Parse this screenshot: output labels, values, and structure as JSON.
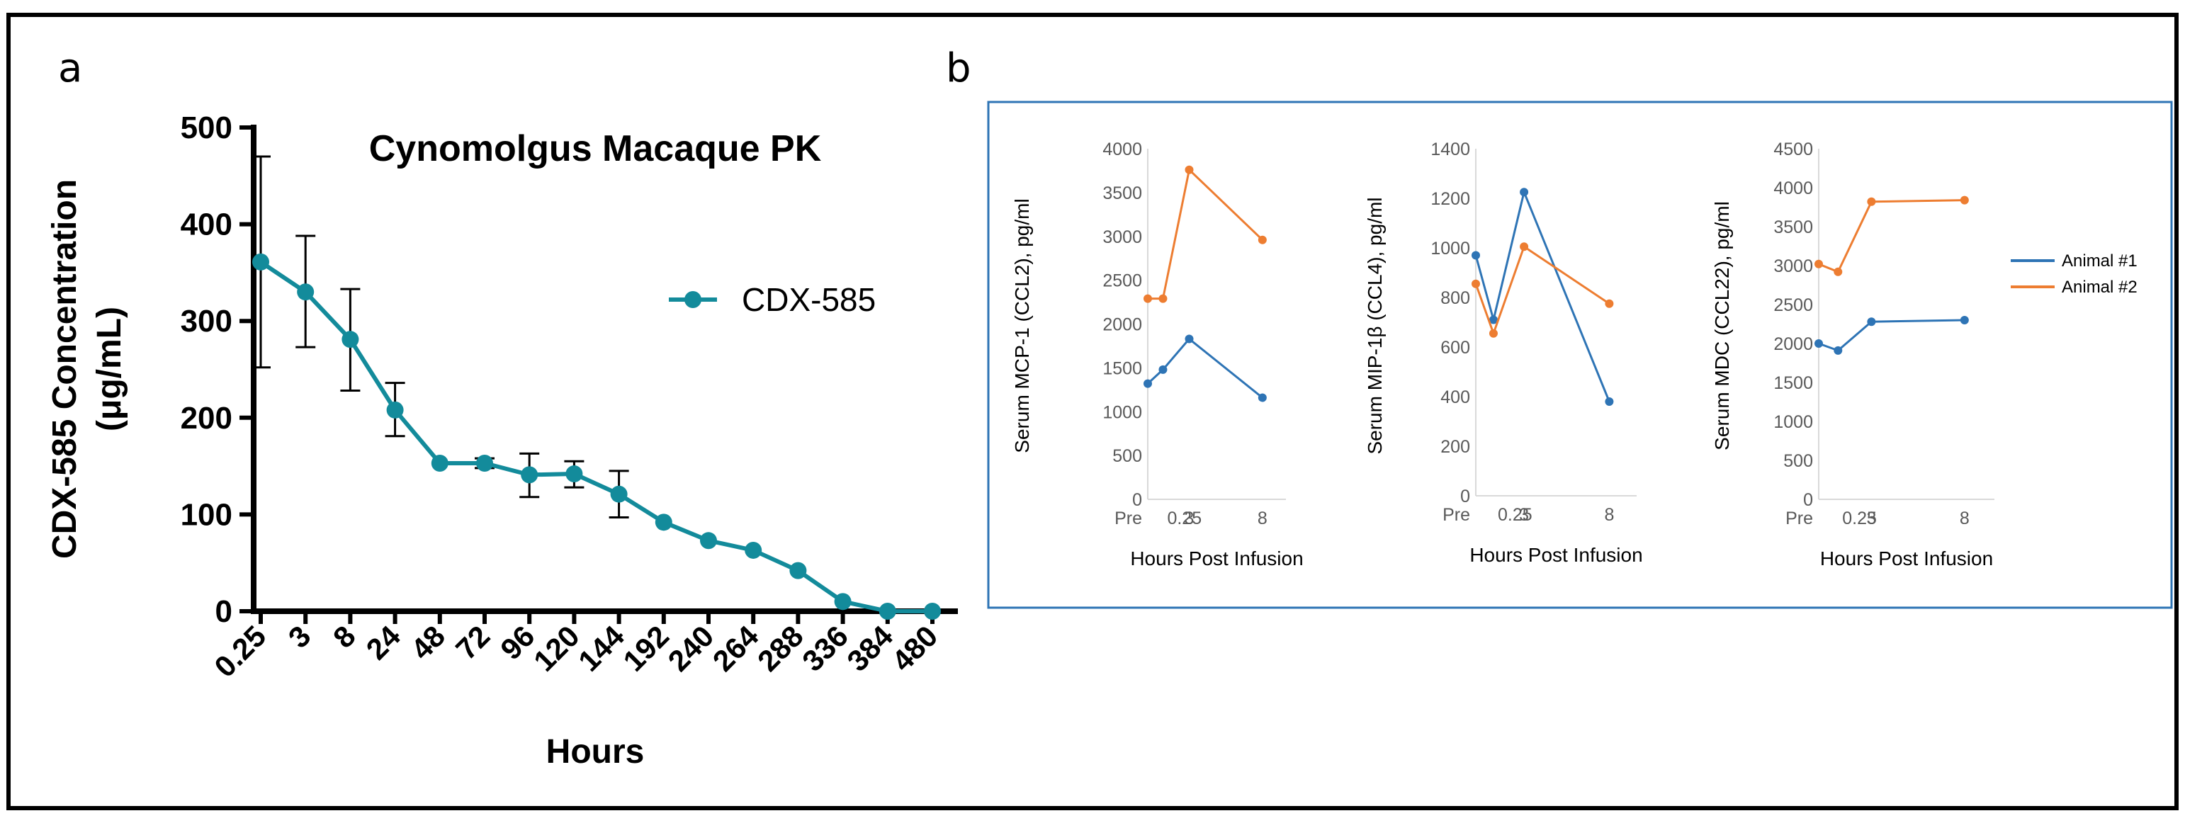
{
  "panels": {
    "a_letter": "a",
    "b_letter": "b"
  },
  "colors": {
    "teal": "#138b9b",
    "animal1": "#2e74b5",
    "animal2": "#ed7d31",
    "axis_b": "#d9d9d9"
  },
  "chart_data": [
    {
      "type": "line",
      "title": "Cynomolgus Macaque PK",
      "xlabel": "Hours",
      "ylabel": [
        "CDX-585 Concentration",
        "(μg/mL)"
      ],
      "categories": [
        "0.25",
        "3",
        "8",
        "24",
        "48",
        "72",
        "96",
        "120",
        "144",
        "192",
        "240",
        "264",
        "288",
        "336",
        "384",
        "480"
      ],
      "series": [
        {
          "name": "CDX-585",
          "values": [
            361,
            330,
            281,
            208,
            153,
            153,
            141,
            142,
            121,
            92,
            73,
            63,
            42,
            10,
            0,
            0
          ],
          "error_low": [
            252,
            273,
            228,
            181,
            null,
            148,
            118,
            128,
            97,
            null,
            null,
            null,
            null,
            null,
            null,
            null
          ],
          "error_high": [
            470,
            388,
            333,
            236,
            null,
            158,
            163,
            155,
            145,
            null,
            null,
            null,
            null,
            null,
            null,
            null
          ]
        }
      ],
      "ylim": [
        0,
        500
      ],
      "yticks": [
        0,
        100,
        200,
        300,
        400,
        500
      ],
      "legend": "right"
    },
    {
      "type": "line",
      "xlabel": "Hours Post Infusion",
      "ylabel": "Serum MCP-1 (CCL2), pg/ml",
      "x_ticks": [
        "Pre",
        "0.25",
        "3",
        "8"
      ],
      "ylim": [
        0,
        4000
      ],
      "yticks": [
        0,
        500,
        1000,
        1500,
        2000,
        2500,
        3000,
        3500,
        4000
      ],
      "series": [
        {
          "name": "Animal #1",
          "x": [
            0,
            0.25,
            3,
            8
          ],
          "values": [
            1320,
            1480,
            1830,
            1160
          ]
        },
        {
          "name": "Animal #2",
          "x": [
            0,
            0.25,
            3,
            8
          ],
          "values": [
            2290,
            2290,
            3760,
            2960
          ]
        }
      ]
    },
    {
      "type": "line",
      "xlabel": "Hours Post Infusion",
      "ylabel": "Serum MIP-1β (CCL4), pg/ml",
      "x_ticks": [
        "Pre",
        "0.25",
        "3",
        "8"
      ],
      "ylim": [
        0,
        1400
      ],
      "yticks": [
        0,
        200,
        400,
        600,
        800,
        1000,
        1200,
        1400
      ],
      "series": [
        {
          "name": "Animal #1",
          "x": [
            0,
            0.25,
            3,
            8
          ],
          "values": [
            970,
            710,
            1225,
            380
          ]
        },
        {
          "name": "Animal #2",
          "x": [
            0,
            0.25,
            3,
            8
          ],
          "values": [
            855,
            655,
            1005,
            775
          ]
        }
      ]
    },
    {
      "type": "line",
      "xlabel": "Hours Post Infusion",
      "ylabel": "Serum MDC (CCL22), pg/ml",
      "x_ticks": [
        "Pre",
        "0.25",
        "3",
        "8"
      ],
      "ylim": [
        0,
        4500
      ],
      "yticks": [
        0,
        500,
        1000,
        1500,
        2000,
        2500,
        3000,
        3500,
        4000,
        4500
      ],
      "series": [
        {
          "name": "Animal #1",
          "x": [
            0,
            0.25,
            3,
            8
          ],
          "values": [
            2000,
            1910,
            2280,
            2300
          ]
        },
        {
          "name": "Animal #2",
          "x": [
            0,
            0.25,
            3,
            8
          ],
          "values": [
            3020,
            2920,
            3820,
            3840
          ]
        }
      ],
      "legend": [
        "Animal #1",
        "Animal #2"
      ]
    }
  ]
}
